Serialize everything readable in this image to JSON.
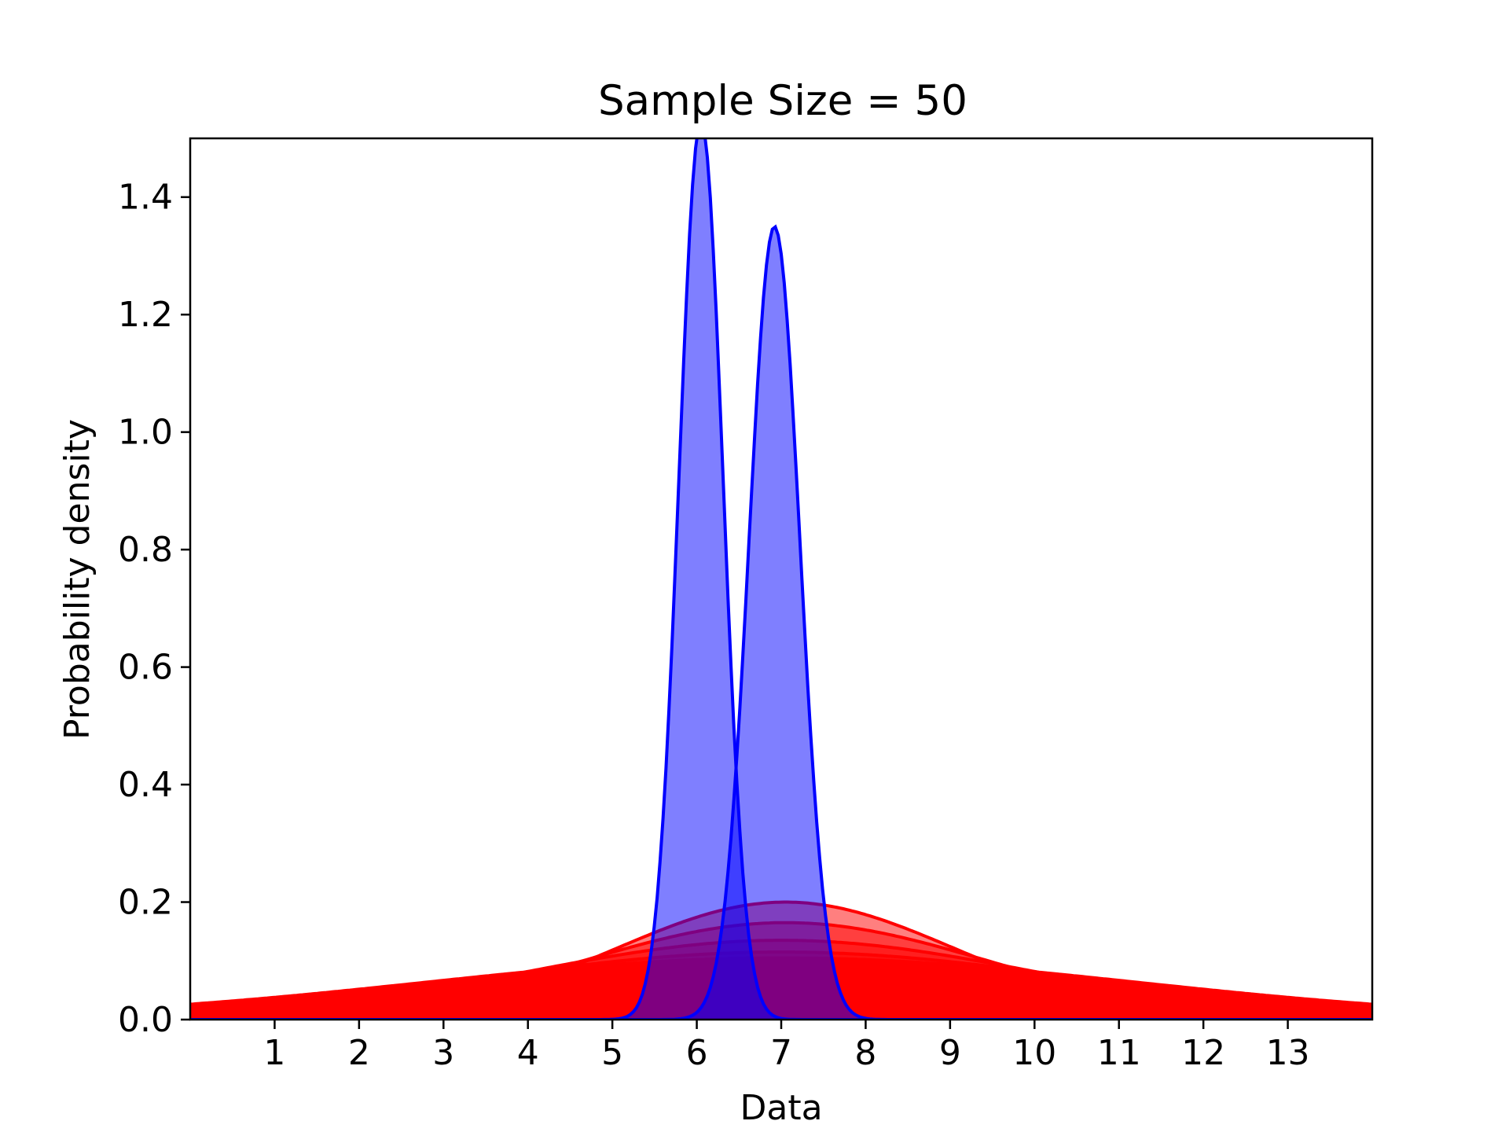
{
  "chart_data": {
    "type": "area",
    "title": "Sample Size = 50",
    "xlabel": "Data",
    "ylabel": "Probability density",
    "xlim": [
      0,
      14
    ],
    "ylim": [
      0,
      1.5
    ],
    "x_ticks": [
      1,
      2,
      3,
      4,
      5,
      6,
      7,
      8,
      9,
      10,
      11,
      12,
      13
    ],
    "y_ticks": [
      "0.0",
      "0.2",
      "0.4",
      "0.6",
      "0.8",
      "1.0",
      "1.2",
      "1.4"
    ],
    "grid": false,
    "legend": "none",
    "series": [
      {
        "kind": "normal",
        "mean": 6.05,
        "std": 0.26,
        "peak": 1.53,
        "color": "#0000ff",
        "fill": "#0000ff",
        "fill_opacity": 0.5
      },
      {
        "kind": "normal",
        "mean": 6.92,
        "std": 0.3,
        "peak": 1.35,
        "color": "#0000ff",
        "fill": "#0000ff",
        "fill_opacity": 0.5
      },
      {
        "kind": "normal",
        "mean": 7.05,
        "std": 2.0,
        "peak": 0.2,
        "color": "#ff0000",
        "fill": "#ff0000",
        "fill_opacity": 0.5
      },
      {
        "kind": "normal",
        "mean": 7.05,
        "std": 2.4,
        "peak": 0.165,
        "color": "#ff0000",
        "fill": "#ff0000",
        "fill_opacity": 0.5
      },
      {
        "kind": "normal",
        "mean": 7.0,
        "std": 3.0,
        "peak": 0.135,
        "color": "#ff0000",
        "fill": "#ff0000",
        "fill_opacity": 0.5
      },
      {
        "kind": "normal",
        "mean": 7.0,
        "std": 3.6,
        "peak": 0.115,
        "color": "#ff0000",
        "fill": "#ff0000",
        "fill_opacity": 0.5
      },
      {
        "kind": "normal",
        "mean": 7.0,
        "std": 4.2,
        "peak": 0.105,
        "color": "#ff0000",
        "fill": "#ff0000",
        "fill_opacity": 1.0
      }
    ]
  }
}
